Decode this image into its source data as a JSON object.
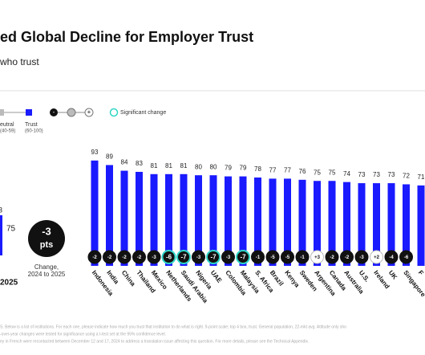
{
  "chart_data": {
    "type": "bar",
    "title": "ed Global Decline for Employer Trust",
    "subtitle": "who trust",
    "legend": {
      "neutral": "eutral",
      "neutral_range": "(40-59)",
      "trust": "Trust",
      "trust_range": "(60-100)",
      "minus": "-",
      "plus": "+",
      "significant": "Significant change"
    },
    "summary": {
      "partial_value": "3",
      "value": "75",
      "change": "-3",
      "change_unit": "pts",
      "change_caption_1": "Change,",
      "change_caption_2": "2024 to 2025",
      "year": "2025"
    },
    "categories": [
      "Indonesia",
      "India",
      "China",
      "Thailand",
      "Mexico",
      "Netherlands",
      "Saudi Arabia",
      "Nigeria",
      "UAE",
      "Colombia",
      "Malaysia",
      "S. Africa",
      "Brazil",
      "Kenya",
      "Sweden",
      "Argentina",
      "Canada",
      "Australia",
      "U.S.",
      "Ireland",
      "UK",
      "Singapore",
      "F"
    ],
    "values": [
      93,
      89,
      84,
      83,
      81,
      81,
      81,
      80,
      80,
      79,
      79,
      78,
      77,
      77,
      76,
      75,
      75,
      74,
      73,
      73,
      73,
      72,
      71
    ],
    "changes": [
      -2,
      -2,
      -2,
      -2,
      -3,
      -6,
      -7,
      -3,
      -7,
      -3,
      -7,
      -1,
      -5,
      -5,
      -1,
      3,
      -2,
      -2,
      -3,
      2,
      -4,
      -6,
      null
    ],
    "change_labels": [
      "-2",
      "-2",
      "-2",
      "-2",
      "-3",
      "-6",
      "-7",
      "-3",
      "-7",
      "-3",
      "-7",
      "-1",
      "-5",
      "-5",
      "-1",
      "+3",
      "-2",
      "-2",
      "-3",
      "+2",
      "-4",
      "-6",
      null
    ],
    "significant": [
      false,
      false,
      false,
      false,
      false,
      true,
      true,
      false,
      true,
      false,
      true,
      false,
      false,
      false,
      false,
      false,
      false,
      false,
      false,
      false,
      false,
      false,
      false
    ],
    "color": "#1a1aff",
    "significant_color": "#2fd6c6",
    "footnotes": [
      "S. Below is a list of institutions. For each one, please indicate how much you trust that institution to do what is right. 9-point scale; top 4 box, trust. General population, 22-mkt avg. Attitude only sho",
      "-over-year changes were tested for significance using a t-test set at the 95% confidence level.",
      "ey in French were recontacted between December 12 and 17, 2024 to address a translation issue affecting this question. For more details, please see the Technical Appendix."
    ]
  }
}
